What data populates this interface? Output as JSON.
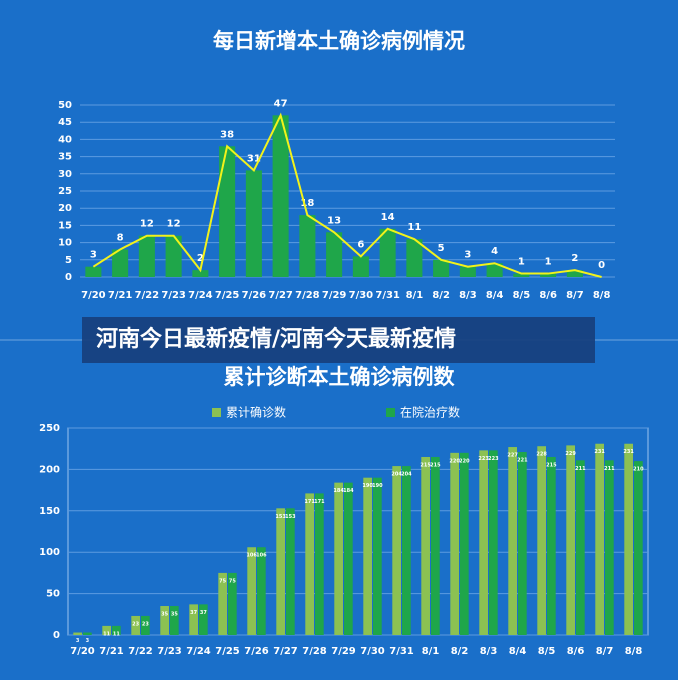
{
  "banner": "河南今日最新疫情/河南今天最新疫情",
  "chart_data": [
    {
      "type": "bar",
      "title": "每日新增本土确诊病例情况",
      "categories": [
        "7/20",
        "7/21",
        "7/22",
        "7/23",
        "7/24",
        "7/25",
        "7/26",
        "7/27",
        "7/28",
        "7/29",
        "7/30",
        "7/31",
        "8/1",
        "8/2",
        "8/3",
        "8/4",
        "8/5",
        "8/6",
        "8/7",
        "8/8"
      ],
      "values": [
        3,
        8,
        12,
        12,
        2,
        38,
        31,
        47,
        18,
        13,
        6,
        14,
        11,
        5,
        3,
        4,
        1,
        1,
        2,
        0
      ],
      "color": "#1fa64a",
      "line_color": "#f2f21a",
      "ylim": [
        0,
        50
      ],
      "yticks": [
        0,
        5,
        10,
        15,
        20,
        25,
        30,
        35,
        40,
        45,
        50
      ],
      "grid": true
    },
    {
      "type": "grouped",
      "title": "累计诊断本土确诊病例数",
      "categories": [
        "7/20",
        "7/21",
        "7/22",
        "7/23",
        "7/24",
        "7/25",
        "7/26",
        "7/27",
        "7/28",
        "7/29",
        "7/30",
        "7/31",
        "8/1",
        "8/2",
        "8/3",
        "8/4",
        "8/5",
        "8/6",
        "8/7",
        "8/8"
      ],
      "series": [
        {
          "name": "累计确诊数",
          "color": "#8cc152",
          "values": [
            3,
            11,
            23,
            35,
            37,
            75,
            106,
            153,
            171,
            184,
            190,
            204,
            215,
            220,
            223,
            227,
            228,
            229,
            231,
            231
          ]
        },
        {
          "name": "在院治疗数",
          "color": "#1fa64a",
          "values": [
            3,
            11,
            23,
            35,
            37,
            75,
            106,
            153,
            171,
            184,
            190,
            204,
            215,
            220,
            223,
            221,
            215,
            211,
            211,
            210
          ]
        }
      ],
      "ylim": [
        0,
        250
      ],
      "yticks": [
        0,
        50,
        100,
        150,
        200,
        250
      ],
      "grid": true,
      "legend": "top"
    }
  ]
}
